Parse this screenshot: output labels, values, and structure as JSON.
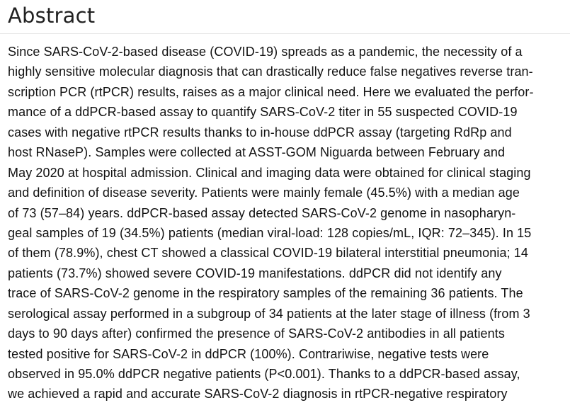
{
  "abstract": {
    "heading": "Abstract",
    "lines": [
      "Since SARS-CoV-2-based disease (COVID-19) spreads as a pandemic, the necessity of a",
      "highly sensitive molecular diagnosis that can drastically reduce false negatives reverse tran-",
      "scription PCR (rtPCR) results, raises as a major clinical need. Here we evaluated the perfor-",
      "mance of a ddPCR-based assay to quantify SARS-CoV-2 titer in 55 suspected COVID-19",
      "cases with negative rtPCR results thanks to in-house ddPCR assay (targeting RdRp and",
      "host RNaseP). Samples were collected at ASST-GOM Niguarda between February and",
      "May 2020 at hospital admission. Clinical and imaging data were obtained for clinical staging",
      "and definition of disease severity. Patients were mainly female (45.5%) with a median age",
      "of 73 (57–84) years. ddPCR-based assay detected SARS-CoV-2 genome in nasopharyn-",
      "geal samples of 19 (34.5%) patients (median viral-load: 128 copies/mL, IQR: 72–345). In 15",
      "of them (78.9%), chest CT showed a classical COVID-19 bilateral interstitial pneumonia; 14",
      "patients (73.7%) showed severe COVID-19 manifestations. ddPCR did not identify any",
      "trace of SARS-CoV-2 genome in the respiratory samples of the remaining 36 patients. The",
      "serological assay performed in a subgroup of 34 patients at the later stage of illness (from 3",
      "days to 90 days after) confirmed the presence of SARS-CoV-2 antibodies in all patients",
      "tested positive for SARS-CoV-2 in ddPCR (100%). Contrariwise, negative tests were",
      "observed in 95.0% ddPCR negative patients (P<0.001). Thanks to a ddPCR-based assay,",
      "we achieved a rapid and accurate SARS-CoV-2 diagnosis in rtPCR-negative respiratory"
    ]
  },
  "colors": {
    "background": "#ffffff",
    "heading_text": "#212121",
    "body_text": "#121212",
    "divider": "#e6e6e6"
  }
}
